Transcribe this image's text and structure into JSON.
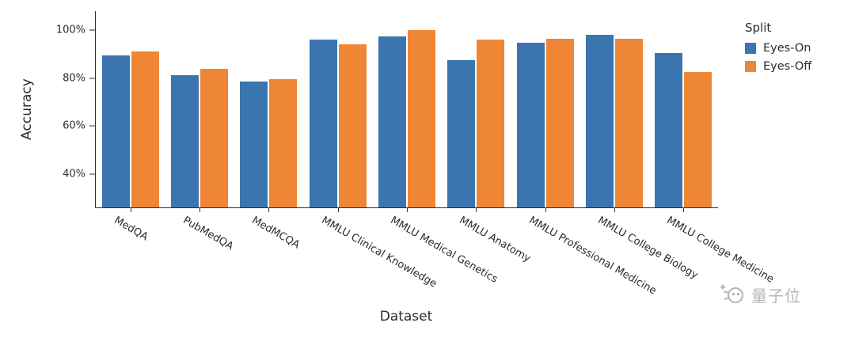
{
  "chart_data": {
    "type": "bar",
    "title": "",
    "xlabel": "Dataset",
    "ylabel": "Accuracy",
    "ylim": [
      26,
      108
    ],
    "grid": false,
    "yticks": [
      {
        "value": 40,
        "label": "40%"
      },
      {
        "value": 60,
        "label": "60%"
      },
      {
        "value": 80,
        "label": "80%"
      },
      {
        "value": 100,
        "label": "100%"
      }
    ],
    "categories": [
      "MedQA",
      "PubMedQA",
      "MedMCQA",
      "MMLU Clinical Knowledge",
      "MMLU Medical Genetics",
      "MMLU Anatomy",
      "MMLU Professional Medicine",
      "MMLU College Biology",
      "MMLU College Medicine"
    ],
    "series": [
      {
        "name": "Eyes-On",
        "color": "#3A75B0",
        "values": [
          89.6,
          81.2,
          78.6,
          96.2,
          97.5,
          87.6,
          94.8,
          98.2,
          90.4
        ]
      },
      {
        "name": "Eyes-Off",
        "color": "#EF8636",
        "values": [
          91.2,
          83.8,
          79.7,
          94.0,
          100.0,
          96.2,
          96.3,
          96.5,
          82.7
        ]
      }
    ],
    "legend": {
      "title": "Split",
      "position": "right"
    }
  },
  "watermark": {
    "text": "量子位"
  }
}
